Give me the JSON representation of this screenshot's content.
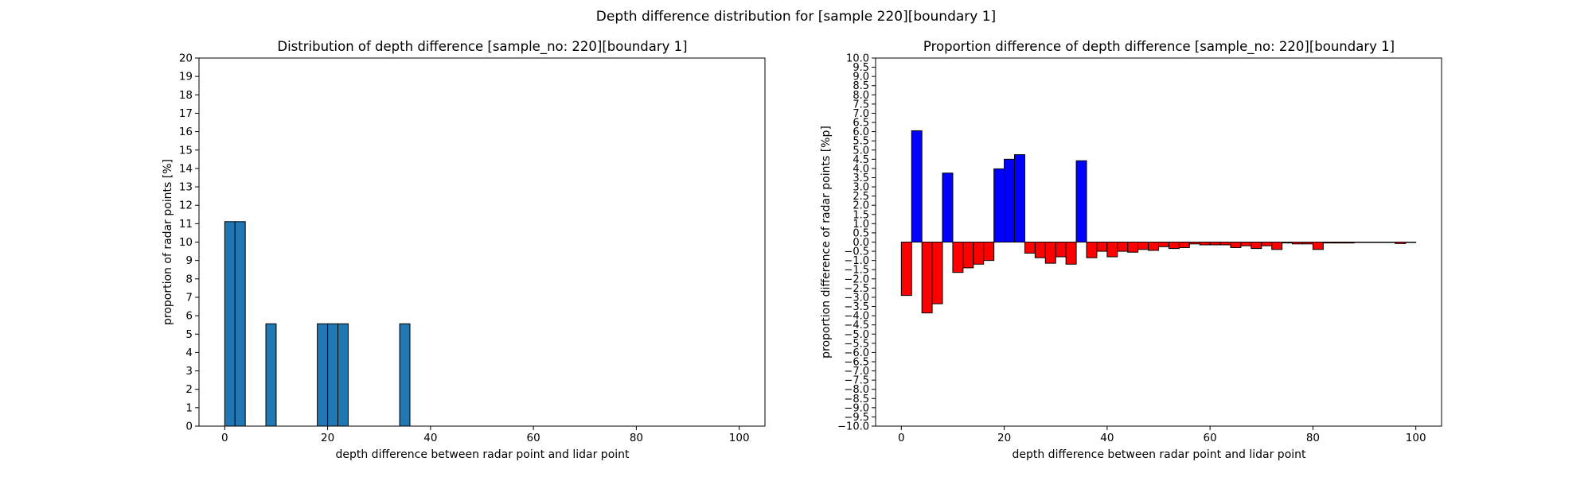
{
  "suptitle": "Depth difference distribution for [sample 220][boundary 1]",
  "chart_data": [
    {
      "type": "bar",
      "title": "Distribution of depth difference [sample_no: 220][boundary 1]",
      "xlabel": "depth difference between radar point and lidar point",
      "ylabel": "proportion of radar points [%]",
      "xlim": [
        -5,
        105
      ],
      "ylim": [
        0,
        20
      ],
      "xticks": [
        0,
        20,
        40,
        60,
        80,
        100
      ],
      "yticks": [
        0,
        1,
        2,
        3,
        4,
        5,
        6,
        7,
        8,
        9,
        10,
        11,
        12,
        13,
        14,
        15,
        16,
        17,
        18,
        19,
        20
      ],
      "bin_width": 2,
      "bar_color": "#1f77b4",
      "edge_color": "#000000",
      "bins": [
        {
          "x": 0,
          "value": 11.11
        },
        {
          "x": 2,
          "value": 11.11
        },
        {
          "x": 8,
          "value": 5.56
        },
        {
          "x": 18,
          "value": 5.56
        },
        {
          "x": 20,
          "value": 5.56
        },
        {
          "x": 22,
          "value": 5.56
        },
        {
          "x": 34,
          "value": 5.56
        }
      ]
    },
    {
      "type": "bar",
      "title": "Proportion difference of depth difference [sample_no: 220][boundary 1]",
      "xlabel": "depth difference between radar point and lidar point",
      "ylabel": "proportion difference of radar points [%p]",
      "xlim": [
        -5,
        105
      ],
      "ylim": [
        -10,
        10
      ],
      "xticks": [
        0,
        20,
        40,
        60,
        80,
        100
      ],
      "yticks": [
        "10.0",
        "9.5",
        "9.0",
        "8.5",
        "8.0",
        "7.5",
        "7.0",
        "6.5",
        "6.0",
        "5.5",
        "5.0",
        "4.5",
        "4.0",
        "3.5",
        "3.0",
        "2.5",
        "2.0",
        "1.5",
        "1.0",
        "0.5",
        "0.0",
        "-0.5",
        "-1.0",
        "-1.5",
        "-2.0",
        "-2.5",
        "-3.0",
        "-3.5",
        "-4.0",
        "-4.5",
        "-5.0",
        "-5.5",
        "-6.0",
        "-6.5",
        "-7.0",
        "-7.5",
        "-8.0",
        "-8.5",
        "-9.0",
        "-9.5",
        "-10.0"
      ],
      "bin_width": 2,
      "positive_color": "#0000ff",
      "negative_color": "#ff0000",
      "edge_color": "#000000",
      "bins": [
        {
          "x": 0,
          "value": -2.9
        },
        {
          "x": 2,
          "value": 6.05
        },
        {
          "x": 4,
          "value": -3.85
        },
        {
          "x": 6,
          "value": -3.35
        },
        {
          "x": 8,
          "value": 3.75
        },
        {
          "x": 10,
          "value": -1.65
        },
        {
          "x": 12,
          "value": -1.4
        },
        {
          "x": 14,
          "value": -1.2
        },
        {
          "x": 16,
          "value": -1.0
        },
        {
          "x": 18,
          "value": 3.98
        },
        {
          "x": 20,
          "value": 4.5
        },
        {
          "x": 22,
          "value": 4.75
        },
        {
          "x": 24,
          "value": -0.6
        },
        {
          "x": 26,
          "value": -0.85
        },
        {
          "x": 28,
          "value": -1.15
        },
        {
          "x": 30,
          "value": -0.8
        },
        {
          "x": 32,
          "value": -1.2
        },
        {
          "x": 34,
          "value": 4.42
        },
        {
          "x": 36,
          "value": -0.85
        },
        {
          "x": 38,
          "value": -0.5
        },
        {
          "x": 40,
          "value": -0.8
        },
        {
          "x": 42,
          "value": -0.5
        },
        {
          "x": 44,
          "value": -0.55
        },
        {
          "x": 46,
          "value": -0.4
        },
        {
          "x": 48,
          "value": -0.45
        },
        {
          "x": 50,
          "value": -0.25
        },
        {
          "x": 52,
          "value": -0.35
        },
        {
          "x": 54,
          "value": -0.3
        },
        {
          "x": 56,
          "value": -0.1
        },
        {
          "x": 58,
          "value": -0.15
        },
        {
          "x": 60,
          "value": -0.15
        },
        {
          "x": 62,
          "value": -0.15
        },
        {
          "x": 64,
          "value": -0.3
        },
        {
          "x": 66,
          "value": -0.2
        },
        {
          "x": 68,
          "value": -0.35
        },
        {
          "x": 70,
          "value": -0.2
        },
        {
          "x": 72,
          "value": -0.4
        },
        {
          "x": 74,
          "value": -0.05
        },
        {
          "x": 76,
          "value": -0.1
        },
        {
          "x": 78,
          "value": -0.1
        },
        {
          "x": 80,
          "value": -0.4
        },
        {
          "x": 82,
          "value": -0.05
        },
        {
          "x": 84,
          "value": -0.05
        },
        {
          "x": 86,
          "value": -0.05
        },
        {
          "x": 88,
          "value": -0.02
        },
        {
          "x": 90,
          "value": -0.02
        },
        {
          "x": 92,
          "value": -0.02
        },
        {
          "x": 94,
          "value": -0.02
        },
        {
          "x": 96,
          "value": -0.08
        },
        {
          "x": 98,
          "value": -0.02
        }
      ]
    }
  ]
}
